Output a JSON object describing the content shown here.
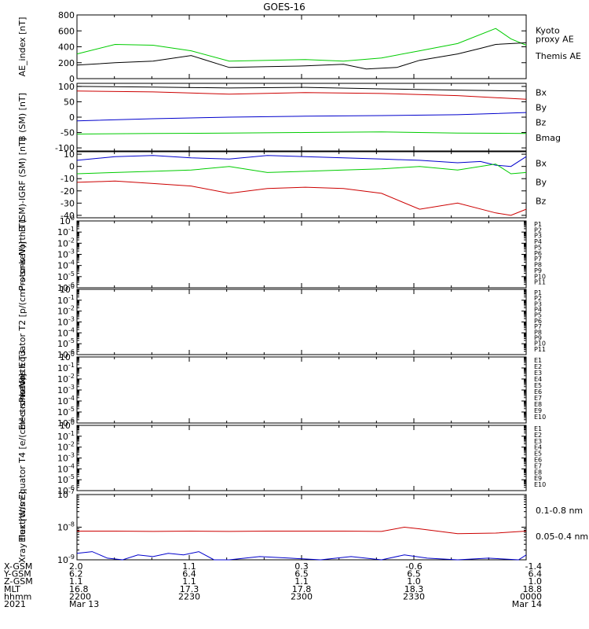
{
  "title": "GOES-16",
  "chart_data": [
    {
      "type": "line",
      "ylabel": "AE_index [nT]",
      "ylim": [
        0,
        800
      ],
      "yticks": [
        0,
        200,
        400,
        600,
        800
      ],
      "yticklabels": [
        "0",
        "200",
        "400",
        "600",
        "800"
      ],
      "xlim": [
        0,
        59
      ],
      "legend": [
        {
          "label": "Kyoto proxy AE",
          "lines": [
            "Kyoto",
            "proxy AE"
          ],
          "color": "#00cc00"
        },
        {
          "label": "Themis AE",
          "lines": [
            "Themis AE"
          ],
          "color": "#000000"
        }
      ],
      "series": [
        {
          "color": "#00cc00",
          "x": [
            0,
            5,
            10,
            15,
            20,
            25,
            30,
            35,
            40,
            45,
            50,
            55,
            57,
            59
          ],
          "y": [
            310,
            430,
            420,
            350,
            220,
            230,
            240,
            220,
            260,
            350,
            440,
            630,
            500,
            420
          ]
        },
        {
          "color": "#000000",
          "x": [
            0,
            5,
            10,
            15,
            20,
            25,
            30,
            35,
            38,
            42,
            45,
            50,
            53,
            55,
            59
          ],
          "y": [
            170,
            200,
            220,
            290,
            140,
            150,
            160,
            180,
            120,
            140,
            230,
            310,
            380,
            430,
            450
          ]
        }
      ]
    },
    {
      "type": "line",
      "ylabel": "B (SM) [nT]",
      "ylim": [
        -110,
        110
      ],
      "yticks": [
        -100,
        -50,
        0,
        50,
        100
      ],
      "yticklabels": [
        "-100",
        "-50",
        "0",
        "50",
        "100"
      ],
      "xlim": [
        0,
        59
      ],
      "legend": [
        {
          "label": "Bx",
          "lines": [
            "Bx"
          ],
          "color": "#0000cc"
        },
        {
          "label": "By",
          "lines": [
            "By"
          ],
          "color": "#00cc00"
        },
        {
          "label": "Bz",
          "lines": [
            "Bz"
          ],
          "color": "#cc0000"
        },
        {
          "label": "Bmag",
          "lines": [
            "Bmag"
          ],
          "color": "#000000"
        }
      ],
      "series": [
        {
          "color": "#0000cc",
          "x": [
            0,
            10,
            20,
            30,
            40,
            50,
            59
          ],
          "y": [
            -12,
            -5,
            0,
            3,
            5,
            8,
            15
          ]
        },
        {
          "color": "#00cc00",
          "x": [
            0,
            10,
            20,
            30,
            40,
            50,
            59
          ],
          "y": [
            -55,
            -53,
            -52,
            -50,
            -48,
            -52,
            -53
          ]
        },
        {
          "color": "#cc0000",
          "x": [
            0,
            10,
            20,
            30,
            40,
            50,
            59
          ],
          "y": [
            85,
            82,
            75,
            80,
            77,
            70,
            58
          ]
        },
        {
          "color": "#000000",
          "x": [
            0,
            10,
            20,
            30,
            40,
            50,
            59
          ],
          "y": [
            100,
            98,
            95,
            97,
            92,
            88,
            85
          ]
        }
      ]
    },
    {
      "type": "line",
      "ylabel": "B (SM)-IGRF (SM) [nT]",
      "ylim": [
        -42,
        12
      ],
      "yticks": [
        -40,
        -30,
        -20,
        -10,
        0,
        10
      ],
      "yticklabels": [
        "-40",
        "-30",
        "-20",
        "-10",
        "0",
        "10"
      ],
      "xlim": [
        0,
        59
      ],
      "legend": [
        {
          "label": "Bx",
          "lines": [
            "Bx"
          ],
          "color": "#0000cc"
        },
        {
          "label": "By",
          "lines": [
            "By"
          ],
          "color": "#00cc00"
        },
        {
          "label": "Bz",
          "lines": [
            "Bz"
          ],
          "color": "#cc0000"
        }
      ],
      "series": [
        {
          "color": "#0000cc",
          "x": [
            0,
            5,
            10,
            15,
            20,
            25,
            30,
            35,
            40,
            45,
            50,
            53,
            55,
            57,
            59
          ],
          "y": [
            5,
            8,
            9,
            7,
            6,
            9,
            8,
            7,
            6,
            5,
            3,
            4,
            1,
            0,
            8
          ]
        },
        {
          "color": "#00cc00",
          "x": [
            0,
            5,
            10,
            15,
            20,
            25,
            30,
            35,
            40,
            45,
            50,
            55,
            57,
            59
          ],
          "y": [
            -6,
            -5,
            -4,
            -3,
            0,
            -5,
            -4,
            -3,
            -2,
            0,
            -3,
            2,
            -6,
            -5
          ]
        },
        {
          "color": "#cc0000",
          "x": [
            0,
            5,
            10,
            15,
            20,
            25,
            30,
            35,
            40,
            45,
            50,
            55,
            57,
            59
          ],
          "y": [
            -13,
            -12,
            -14,
            -16,
            -22,
            -18,
            -17,
            -18,
            -22,
            -35,
            -30,
            -38,
            -40,
            -35
          ]
        }
      ]
    },
    {
      "type": "line",
      "ylabel": "Protons North T1",
      "scale": "log",
      "ylim": [
        -6,
        0
      ],
      "yticks": [
        0,
        -1,
        -2,
        -3,
        -4,
        -5,
        -6
      ],
      "yticklabels": [
        "10^0",
        "10^-1",
        "10^-2",
        "10^-3",
        "10^-4",
        "10^-5",
        "10^-6"
      ],
      "channels": [
        "P1",
        "P2",
        "P3",
        "P4",
        "P5",
        "P6",
        "P7",
        "P8",
        "P9",
        "P10",
        "P11"
      ],
      "channel_colors": [
        "#000000",
        "#800080",
        "#0000cc",
        "#0044ff",
        "#00aaff",
        "#00bbaa",
        "#ffff00",
        "#ffcc00",
        "#ff9900",
        "#ff3300",
        "#cc0000"
      ]
    },
    {
      "type": "line",
      "ylabel": "Protons Equator T2 [p/(cm²-s-sr-keV)]",
      "scale": "log",
      "ylim": [
        -6,
        0
      ],
      "yticks": [
        0,
        -1,
        -2,
        -3,
        -4,
        -5,
        -6
      ],
      "yticklabels": [
        "10^0",
        "10^-1",
        "10^-2",
        "10^-3",
        "10^-4",
        "10^-5",
        "10^-6"
      ],
      "channels": [
        "P1",
        "P2",
        "P3",
        "P4",
        "P5",
        "P6",
        "P7",
        "P8",
        "P9",
        "P10",
        "P11"
      ],
      "channel_colors": [
        "#000000",
        "#800080",
        "#0000cc",
        "#0044ff",
        "#00aaff",
        "#00bbaa",
        "#ffff00",
        "#ffcc00",
        "#ff9900",
        "#ff3300",
        "#cc0000"
      ]
    },
    {
      "type": "line",
      "ylabel": "Electrons North T3",
      "scale": "log",
      "ylim": [
        -6,
        0
      ],
      "yticks": [
        0,
        -1,
        -2,
        -3,
        -4,
        -5,
        -6
      ],
      "yticklabels": [
        "10^0",
        "10^-1",
        "10^-2",
        "10^-3",
        "10^-4",
        "10^-5",
        "10^-6"
      ],
      "channels": [
        "E1",
        "E2",
        "E3",
        "E4",
        "E5",
        "E6",
        "E7",
        "E8",
        "E9",
        "E10"
      ],
      "channel_colors": [
        "#000000",
        "#800080",
        "#0000cc",
        "#00aaff",
        "#00bbaa",
        "#00cc00",
        "#ffff00",
        "#ff9900",
        "#ff3300",
        "#cc0000"
      ]
    },
    {
      "type": "line",
      "ylabel": "Electrons Equator T4 [e/(cm²-s-sr-keV)]",
      "scale": "log",
      "ylim": [
        -6,
        0
      ],
      "yticks": [
        0,
        -1,
        -2,
        -3,
        -4,
        -5,
        -6
      ],
      "yticklabels": [
        "10^0",
        "10^-1",
        "10^-2",
        "10^-3",
        "10^-4",
        "10^-5",
        "10^-6"
      ],
      "channels": [
        "E1",
        "E2",
        "E3",
        "E4",
        "E5",
        "E6",
        "E7",
        "E8",
        "E9",
        "E10"
      ],
      "channel_colors": [
        "#000000",
        "#800080",
        "#0000cc",
        "#00aaff",
        "#00bbaa",
        "#00cc00",
        "#ffff00",
        "#ff9900",
        "#ff3300",
        "#cc0000"
      ]
    },
    {
      "type": "line",
      "ylabel": "Xray flux [W/m²]",
      "scale": "log",
      "ylim": [
        -9,
        -7
      ],
      "yticks": [
        -7,
        -8,
        -9
      ],
      "yticklabels": [
        "10^-7",
        "10^-8",
        "10^-9"
      ],
      "xlim": [
        0,
        59
      ],
      "legend": [
        {
          "label": "0.1-0.8 nm",
          "lines": [
            "0.1-0.8 nm"
          ],
          "color": "#cc0000"
        },
        {
          "label": "0.05-0.4 nm",
          "lines": [
            "0.05-0.4 nm"
          ],
          "color": "#0000cc"
        }
      ],
      "series": [
        {
          "color": "#cc0000",
          "x": [
            0,
            5,
            10,
            15,
            20,
            25,
            30,
            35,
            40,
            43,
            45,
            50,
            55,
            59
          ],
          "y": [
            -8.12,
            -8.12,
            -8.13,
            -8.12,
            -8.13,
            -8.12,
            -8.12,
            -8.12,
            -8.13,
            -8.0,
            -8.05,
            -8.2,
            -8.18,
            -8.12
          ]
        },
        {
          "color": "#0000cc",
          "x": [
            0,
            2,
            4,
            6,
            8,
            10,
            12,
            14,
            16,
            18,
            20,
            24,
            28,
            32,
            36,
            40,
            43,
            46,
            50,
            54,
            58,
            59
          ],
          "y": [
            -8.8,
            -8.75,
            -8.95,
            -9.0,
            -8.85,
            -8.9,
            -8.8,
            -8.85,
            -8.75,
            -9.0,
            -9.0,
            -8.9,
            -8.95,
            -9.0,
            -8.9,
            -9.0,
            -8.85,
            -8.95,
            -9.0,
            -8.95,
            -9.0,
            -8.85
          ]
        }
      ]
    }
  ],
  "xaxis": {
    "xlim": [
      0,
      60
    ],
    "rows": [
      {
        "label": "X-GSM",
        "values": [
          "2.0",
          "1.1",
          "0.3",
          "-0.6",
          "-1.4"
        ]
      },
      {
        "label": "Y-GSM",
        "values": [
          "6.2",
          "6.4",
          "6.5",
          "6.5",
          "6.4"
        ]
      },
      {
        "label": "Z-GSM",
        "values": [
          "1.1",
          "1.1",
          "1.1",
          "1.0",
          "1.0"
        ]
      },
      {
        "label": "MLT",
        "values": [
          "16.8",
          "17.3",
          "17.8",
          "18.3",
          "18.8"
        ]
      },
      {
        "label": "hhmm",
        "values": [
          "2200",
          "2230",
          "2300",
          "2330",
          "0000"
        ]
      },
      {
        "label": "2021",
        "values": [
          "Mar 13",
          "",
          "",
          "",
          "Mar 14"
        ]
      }
    ],
    "major_ticks": [
      0,
      15,
      30,
      45,
      60
    ]
  }
}
